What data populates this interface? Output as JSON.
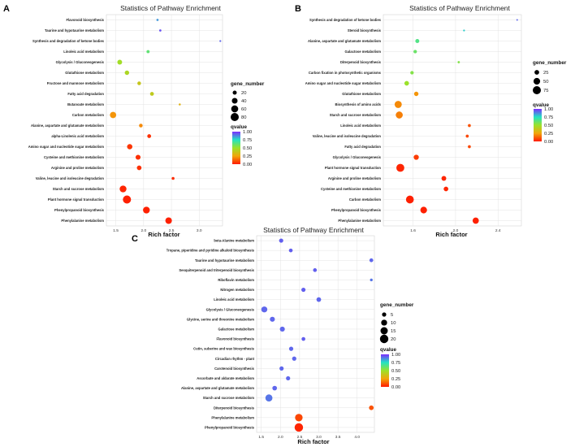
{
  "figure_title": "Statistics of Pathway Enrichment",
  "colors": {
    "q_high": "#7b2cff",
    "q_mid": "#22e3c4",
    "q_mid2": "#9be22a",
    "q_low": "#f2a60a",
    "q_zero": "#ff1a00",
    "panel_bg": "#ffffff",
    "grid": "#e3e3e3"
  },
  "chart_data": [
    {
      "panel": "A",
      "type": "scatter",
      "title": "Statistics of Pathway Enrichment",
      "xlabel": "Rich factor",
      "ylabel": "",
      "xlim": [
        1.33,
        3.42
      ],
      "xticks": [
        1.5,
        2.0,
        2.5,
        3.0
      ],
      "xticklabels": [
        "1.5",
        "2.0",
        "2.5",
        "3.0"
      ],
      "size_legend_title": "gene_number",
      "size_legend": [
        20,
        40,
        60,
        80
      ],
      "color_legend_title": "qvalue",
      "color_legend": [
        0.0,
        0.25,
        0.5,
        0.75,
        1.0
      ],
      "categories": [
        "Flavonoid biosynthesis",
        "Taurine and hypotaurine metabolism",
        "Synthesis and degradation of ketone bodies",
        "Linoleic acid metabolism",
        "Glycolysis / Gluconeogenesis",
        "Glutathione metabolism",
        "Fructose and mannose metabolism",
        "Fatty acid degradation",
        "Butanoate metabolism",
        "Carbon metabolism",
        "Alanine, aspartate and glutamate metabolism",
        "alpha-Linolenic acid metabolism",
        "Amino sugar and nucleotide sugar metabolism",
        "Cysteine and methionine metabolism",
        "Arginine and proline metabolism",
        "Valine, leucine and isoleucine degradation",
        "Starch and sucrose metabolism",
        "Plant hormone signal transduction",
        "Phenylpropanoid biosynthesis",
        "Phenylalanine metabolism"
      ],
      "rich_factor": [
        2.25,
        2.3,
        3.38,
        2.08,
        1.57,
        1.7,
        1.92,
        2.15,
        2.65,
        1.45,
        1.95,
        2.1,
        1.75,
        1.9,
        1.92,
        2.53,
        1.63,
        1.7,
        2.05,
        2.45
      ],
      "gene_number": [
        6,
        6,
        4,
        12,
        28,
        24,
        16,
        18,
        5,
        48,
        16,
        18,
        34,
        30,
        26,
        10,
        56,
        80,
        56,
        52
      ],
      "qvalue": [
        0.85,
        0.95,
        0.92,
        0.62,
        0.48,
        0.45,
        0.38,
        0.4,
        0.3,
        0.22,
        0.2,
        0.04,
        0.05,
        0.04,
        0.04,
        0.03,
        0.02,
        0.01,
        0.01,
        0.01
      ]
    },
    {
      "panel": "B",
      "type": "scatter",
      "title": "Statistics of Pathway Enrichment",
      "xlabel": "Rich factor",
      "ylabel": "",
      "xlim": [
        1.32,
        2.62
      ],
      "xticks": [
        1.6,
        2.0,
        2.4
      ],
      "xticklabels": [
        "1.6",
        "2.0",
        "2.4"
      ],
      "size_legend_title": "gene_number",
      "size_legend": [
        25,
        50,
        75
      ],
      "color_legend_title": "qvalue",
      "color_legend": [
        0.0,
        0.25,
        0.5,
        0.75,
        1.0
      ],
      "categories": [
        "Synthesis and degradation of ketone bodies",
        "Steroid biosynthesis",
        "Alanine, aspartate and glutamate metabolism",
        "Galactose metabolism",
        "Diterpenoid biosynthesis",
        "Carbon fixation in photosynthetic organisms",
        "Amino sugar and nucleotide sugar metabolism",
        "Glutathione metabolism",
        "Biosynthesis of amino acids",
        "Starch and sucrose metabolism",
        "Linoleic acid metabolism",
        "Valine, leucine and isoleucine degradation",
        "Fatty acid degradation",
        "Glycolysis / Gluconeogenesis",
        "Plant hormone signal transduction",
        "Arginine and proline metabolism",
        "Cysteine and methionine metabolism",
        "Carbon metabolism",
        "Phenylpropanoid biosynthesis",
        "Phenylalanine metabolism"
      ],
      "rich_factor": [
        2.58,
        2.08,
        1.64,
        1.62,
        2.03,
        1.59,
        1.54,
        1.63,
        1.46,
        1.47,
        2.13,
        2.11,
        2.13,
        1.63,
        1.48,
        1.89,
        1.91,
        1.57,
        1.7,
        2.19
      ],
      "gene_number": [
        3,
        4,
        18,
        14,
        6,
        14,
        24,
        22,
        58,
        56,
        10,
        10,
        10,
        30,
        72,
        26,
        24,
        70,
        50,
        44
      ],
      "qvalue": [
        0.92,
        0.78,
        0.65,
        0.6,
        0.55,
        0.55,
        0.5,
        0.22,
        0.2,
        0.18,
        0.1,
        0.08,
        0.08,
        0.06,
        0.02,
        0.02,
        0.02,
        0.01,
        0.01,
        0.01
      ]
    },
    {
      "panel": "C",
      "type": "scatter",
      "title": "Statistics of Pathway Enrichment",
      "xlabel": "Rich factor",
      "ylabel": "",
      "xlim": [
        1.38,
        4.45
      ],
      "xticks": [
        1.5,
        2.0,
        2.5,
        3.0,
        3.5,
        4.0
      ],
      "xticklabels": [
        "1.5",
        "2.0",
        "2.5",
        "3.0",
        "3.5",
        "4.0"
      ],
      "size_legend_title": "gene_number",
      "size_legend": [
        5,
        10,
        15,
        20
      ],
      "color_legend_title": "qvalue",
      "color_legend": [
        0.0,
        0.25,
        0.5,
        0.75,
        1.0
      ],
      "categories": [
        "beta-Alanine metabolism",
        "Tropane, piperidine and pyridine alkaloid biosynthesis",
        "Taurine and hypotaurine metabolism",
        "Sesquiterpenoid and triterpenoid biosynthesis",
        "Riboflavin metabolism",
        "Nitrogen metabolism",
        "Linoleic acid metabolism",
        "Glycolysis / Gluconeogenesis",
        "Glycine, serine and threonine metabolism",
        "Galactose metabolism",
        "Flavonoid biosynthesis",
        "Cutin, suberine and wax biosynthesis",
        "Circadian rhythm - plant",
        "Carotenoid biosynthesis",
        "Ascorbate and aldarate metabolism",
        "Alanine, aspartate and glutamate metabolism",
        "Starch and sucrose metabolism",
        "Diterpenoid biosynthesis",
        "Phenylalanine metabolism",
        "Phenylpropanoid biosynthesis"
      ],
      "rich_factor": [
        2.02,
        2.27,
        4.37,
        2.9,
        4.37,
        2.6,
        3.0,
        1.58,
        1.79,
        2.05,
        2.6,
        2.28,
        2.36,
        2.03,
        2.2,
        1.85,
        1.7,
        4.37,
        2.48,
        2.48
      ],
      "gene_number": [
        5,
        4,
        4,
        4,
        2,
        5,
        6,
        10,
        7,
        7,
        4,
        5,
        5,
        5,
        5,
        6,
        14,
        6,
        16,
        20
      ],
      "qvalue": [
        0.93,
        0.93,
        0.92,
        0.93,
        0.9,
        0.93,
        0.92,
        0.92,
        0.92,
        0.92,
        0.93,
        0.92,
        0.92,
        0.92,
        0.92,
        0.92,
        0.9,
        0.1,
        0.08,
        0.02
      ]
    }
  ]
}
